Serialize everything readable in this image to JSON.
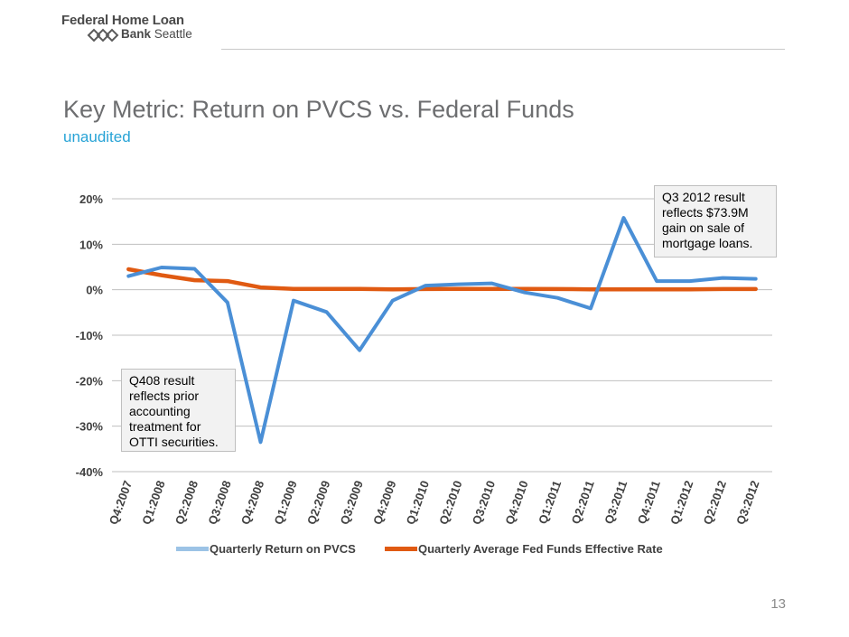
{
  "logo": {
    "line1": "Federal Home Loan",
    "line2_bold": "Bank",
    "line2_rest": " Seattle"
  },
  "header": {
    "title": "Key Metric: Return on PVCS vs. Federal Funds",
    "subtitle": "unaudited"
  },
  "annotations": {
    "q408": "Q408 result reflects prior accounting treatment  for OTTI securities.",
    "q3_2012": "Q3 2012 result reflects $73.9M gain on sale of mortgage loans."
  },
  "page_number": "13",
  "colors": {
    "pvcs": "#4a8fd6",
    "fed_funds": "#e05a12",
    "pvcs_legend": "#9cc3e6",
    "grid": "#bfbfbf"
  },
  "chart_data": {
    "type": "line",
    "categories": [
      "Q4:2007",
      "Q1:2008",
      "Q2:2008",
      "Q3:2008",
      "Q4:2008",
      "Q1:2009",
      "Q2:2009",
      "Q3:2009",
      "Q4:2009",
      "Q1:2010",
      "Q2:2010",
      "Q3:2010",
      "Q4:2010",
      "Q1:2011",
      "Q2:2011",
      "Q3:2011",
      "Q4:2011",
      "Q1:2012",
      "Q2:2012",
      "Q3:2012"
    ],
    "yticks": [
      "20%",
      "10%",
      "0%",
      "-10%",
      "-20%",
      "-30%",
      "-40%"
    ],
    "ytick_values": [
      20,
      10,
      0,
      -10,
      -20,
      -30,
      -40
    ],
    "ylim": [
      -40,
      20
    ],
    "grid": true,
    "legend_position": "bottom",
    "series": [
      {
        "name": "Quarterly Return on PVCS",
        "values": [
          3.0,
          4.9,
          4.6,
          -2.8,
          -33.5,
          -2.4,
          -4.9,
          -13.3,
          -2.4,
          0.9,
          1.2,
          1.4,
          -0.6,
          -1.8,
          -4.1,
          15.8,
          1.9,
          1.9,
          2.6,
          2.4
        ]
      },
      {
        "name": "Quarterly Average Fed Funds Effective Rate",
        "values": [
          4.5,
          3.2,
          2.1,
          1.9,
          0.5,
          0.2,
          0.2,
          0.2,
          0.1,
          0.15,
          0.2,
          0.2,
          0.2,
          0.15,
          0.1,
          0.1,
          0.1,
          0.1,
          0.15,
          0.15
        ]
      }
    ]
  }
}
